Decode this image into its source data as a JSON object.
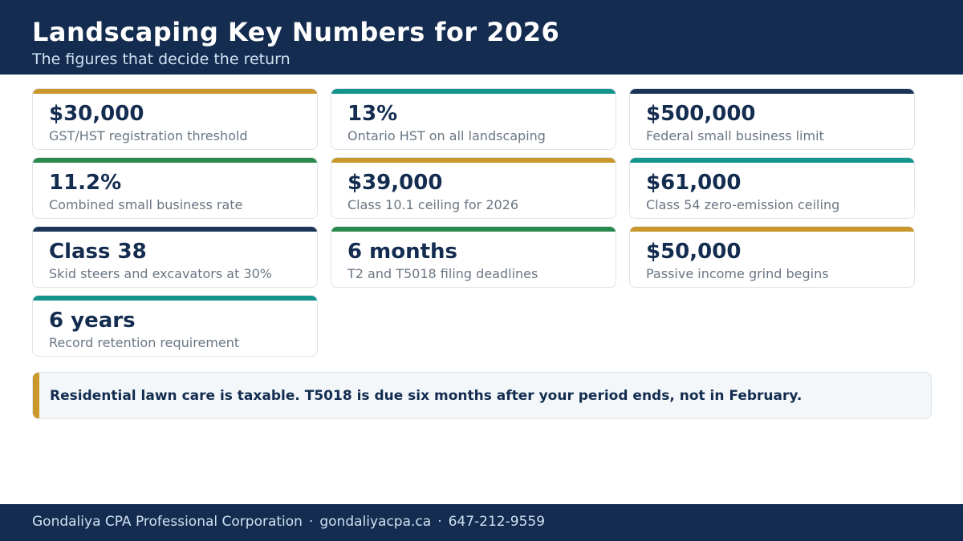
{
  "header": {
    "title": "Landscaping Key Numbers for 2026",
    "subtitle": "The figures that decide the return"
  },
  "colors": {
    "navy": "#132c4f",
    "gold": "#c9972a",
    "teal": "#13948c",
    "green": "#2a8a4e"
  },
  "cards": [
    {
      "value": "$30,000",
      "label": "GST/HST registration threshold",
      "accent": "#c9972a"
    },
    {
      "value": "13%",
      "label": "Ontario HST on all landscaping",
      "accent": "#13948c"
    },
    {
      "value": "$500,000",
      "label": "Federal small business limit",
      "accent": "#1b3558"
    },
    {
      "value": "11.2%",
      "label": "Combined small business rate",
      "accent": "#2a8a4e"
    },
    {
      "value": "$39,000",
      "label": "Class 10.1 ceiling for 2026",
      "accent": "#c9972a"
    },
    {
      "value": "$61,000",
      "label": "Class 54 zero-emission ceiling",
      "accent": "#13948c"
    },
    {
      "value": "Class 38",
      "label": "Skid steers and excavators at 30%",
      "accent": "#1b3558"
    },
    {
      "value": "6 months",
      "label": "T2 and T5018 filing deadlines",
      "accent": "#2a8a4e"
    },
    {
      "value": "$50,000",
      "label": "Passive income grind begins",
      "accent": "#c9972a"
    },
    {
      "value": "6 years",
      "label": "Record retention requirement",
      "accent": "#13948c"
    }
  ],
  "callout": {
    "text": "Residential lawn care is taxable. T5018 is due six months after your period ends, not in February."
  },
  "footer": {
    "company": "Gondaliya CPA Professional Corporation",
    "website": "gondaliyacpa.ca",
    "phone": "647-212-9559",
    "separator": "·"
  }
}
